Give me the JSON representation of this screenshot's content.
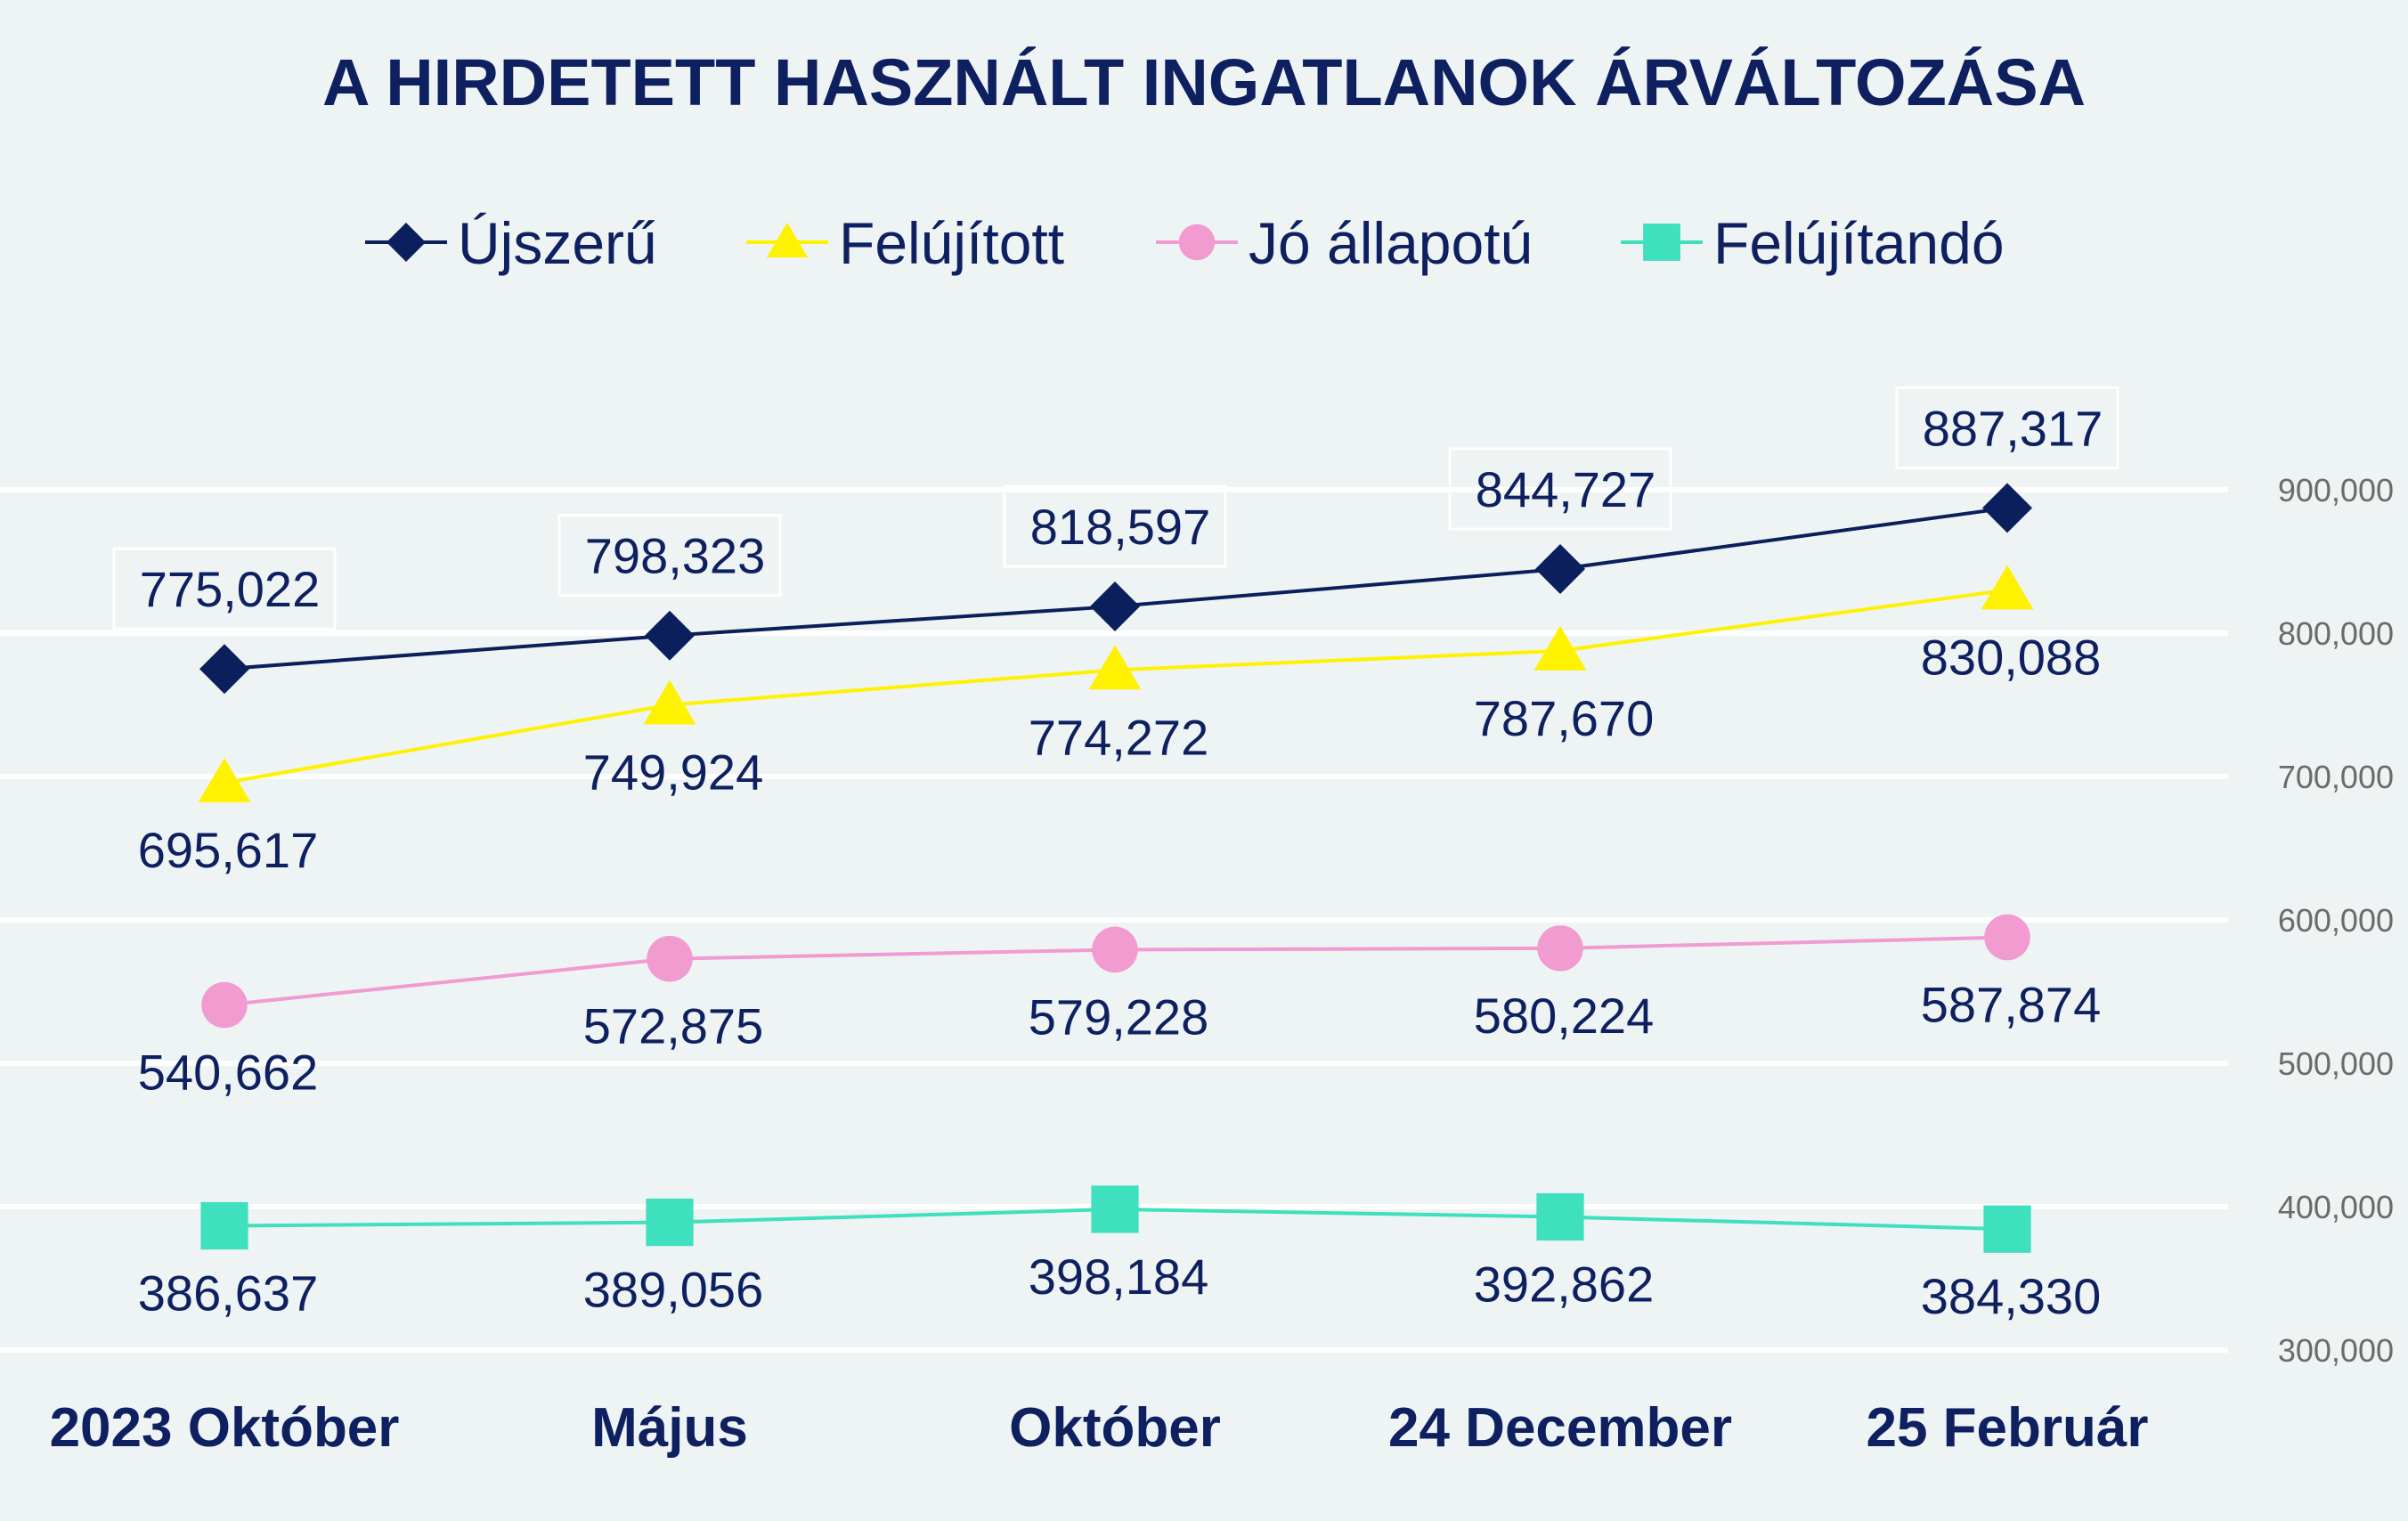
{
  "chart_data": {
    "type": "line",
    "title": "A HIRDETETT HASZNÁLT INGATLANOK ÁRVÁLTOZÁSA",
    "xlabel": "",
    "ylabel": "",
    "categories": [
      "2023 Október",
      "Május",
      "Október",
      "24 December",
      "25 Február"
    ],
    "y_ticks": [
      300000,
      400000,
      500000,
      600000,
      700000,
      800000,
      900000
    ],
    "y_tick_labels": [
      "300,000",
      "400,000",
      "500,000",
      "600,000",
      "700,000",
      "800,000",
      "900,000"
    ],
    "ylim": [
      300000,
      900000
    ],
    "grid": true,
    "y_axis_position": "right",
    "legend_position": "top",
    "series": [
      {
        "name": "Újszerű",
        "color": "#0b1f5c",
        "marker": "diamond",
        "values": [
          775022,
          798323,
          818597,
          844727,
          887317
        ],
        "labels": [
          "775,022",
          "798,323",
          "818,597",
          "844,727",
          "887,317"
        ],
        "label_position": "above-boxed"
      },
      {
        "name": "Felújított",
        "color": "#fff200",
        "marker": "triangle",
        "values": [
          695617,
          749924,
          774272,
          787670,
          830088
        ],
        "labels": [
          "695,617",
          "749,924",
          "774,272",
          "787,670",
          "830,088"
        ],
        "label_position": "below"
      },
      {
        "name": "Jó állapotú",
        "color": "#f29bd0",
        "marker": "circle",
        "values": [
          540662,
          572875,
          579228,
          580224,
          587874
        ],
        "labels": [
          "540,662",
          "572,875",
          "579,228",
          "580,224",
          "587,874"
        ],
        "label_position": "below"
      },
      {
        "name": "Felújítandó",
        "color": "#3ee0bd",
        "marker": "square",
        "values": [
          386637,
          389056,
          398184,
          392862,
          384330
        ],
        "labels": [
          "386,637",
          "389,056",
          "398,184",
          "392,862",
          "384,330"
        ],
        "label_position": "below"
      }
    ]
  }
}
